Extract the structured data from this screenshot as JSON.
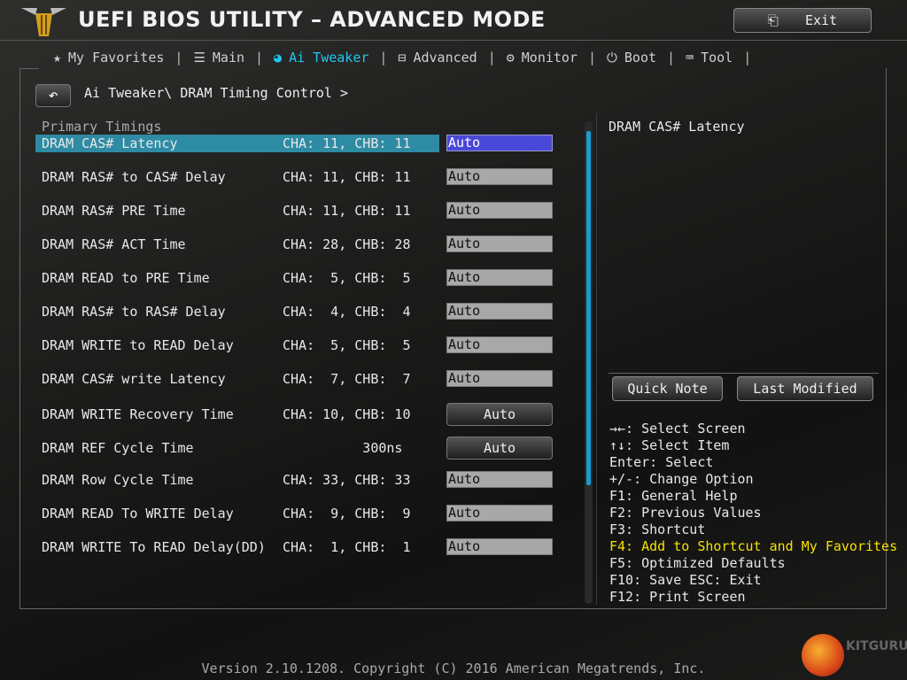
{
  "header": {
    "title": "UEFI BIOS UTILITY – ADVANCED MODE",
    "exit_label": "Exit"
  },
  "nav": [
    {
      "label": "My Favorites",
      "icon": "star-icon"
    },
    {
      "label": "Main",
      "icon": "list-icon"
    },
    {
      "label": "Ai Tweaker",
      "icon": "tweaker-icon",
      "active": true
    },
    {
      "label": "Advanced",
      "icon": "advanced-icon"
    },
    {
      "label": "Monitor",
      "icon": "monitor-icon"
    },
    {
      "label": "Boot",
      "icon": "power-icon"
    },
    {
      "label": "Tool",
      "icon": "tool-icon"
    }
  ],
  "breadcrumb": "Ai Tweaker\\ DRAM Timing Control >",
  "section": "Primary Timings",
  "rows": [
    {
      "label": "DRAM CAS# Latency",
      "value": "CHA: 11, CHB: 11",
      "setting": "Auto"
    },
    {
      "label": "DRAM RAS# to CAS# Delay",
      "value": "CHA: 11, CHB: 11",
      "setting": "Auto"
    },
    {
      "label": "DRAM RAS# PRE Time",
      "value": "CHA: 11, CHB: 11",
      "setting": "Auto"
    },
    {
      "label": "DRAM RAS# ACT Time",
      "value": "CHA: 28, CHB: 28",
      "setting": "Auto"
    },
    {
      "label": "DRAM READ to PRE Time",
      "value": "CHA:  5, CHB:  5",
      "setting": "Auto"
    },
    {
      "label": "DRAM RAS# to RAS# Delay",
      "value": "CHA:  4, CHB:  4",
      "setting": "Auto"
    },
    {
      "label": "DRAM WRITE to READ Delay",
      "value": "CHA:  5, CHB:  5",
      "setting": "Auto"
    },
    {
      "label": "DRAM CAS# write Latency",
      "value": "CHA:  7, CHB:  7",
      "setting": "Auto"
    },
    {
      "label": "DRAM WRITE Recovery Time",
      "value": "CHA: 10, CHB: 10",
      "setting": "Auto"
    },
    {
      "label": "DRAM REF Cycle Time",
      "value": "          300ns",
      "setting": "Auto"
    },
    {
      "label": "DRAM Row Cycle Time",
      "value": "CHA: 33, CHB: 33",
      "setting": "Auto"
    },
    {
      "label": "DRAM READ To WRITE Delay",
      "value": "CHA:  9, CHB:  9",
      "setting": "Auto"
    },
    {
      "label": "DRAM WRITE To READ Delay(DD)",
      "value": "CHA:  1, CHB:  1",
      "setting": "Auto"
    }
  ],
  "help_title": "DRAM CAS# Latency",
  "quick_note": "Quick Note",
  "last_modified": "Last Modified",
  "keys": [
    "→←: Select Screen",
    "↑↓: Select Item",
    "Enter: Select",
    "+/-: Change Option",
    "F1: General Help",
    "F2: Previous Values",
    "F3: Shortcut",
    "F4: Add to Shortcut and My Favorites",
    "F5: Optimized Defaults",
    "F10: Save  ESC: Exit",
    "F12: Print Screen"
  ],
  "version": "Version 2.10.1208. Copyright (C) 2016 American Megatrends, Inc.",
  "watermark": "KITGURU",
  "colors": {
    "accent": "#1ec8f0",
    "selected_row": "#2e8ba4",
    "selected_field": "#4a48d8",
    "highlight_key": "#f5e000"
  }
}
